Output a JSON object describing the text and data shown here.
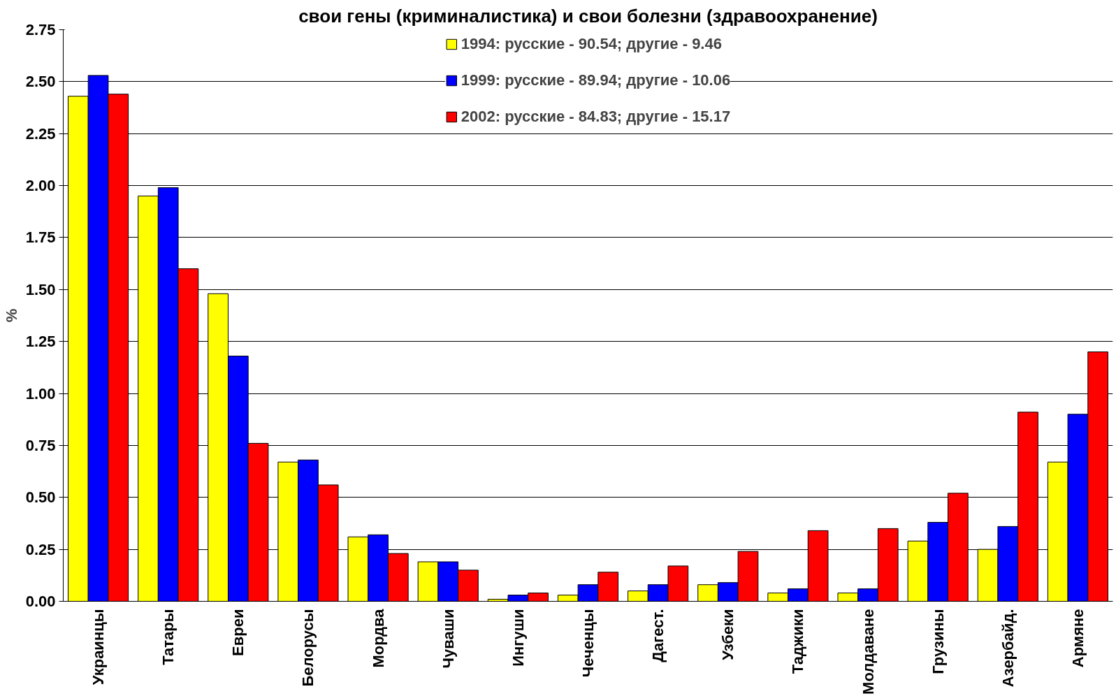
{
  "chart_data": {
    "type": "bar",
    "title": "свои гены (криминалистика) и свои болезни (здравоохранение)",
    "ylabel": "%",
    "categories": [
      "Украинцы",
      "Татары",
      "Евреи",
      "Белорусы",
      "Мордва",
      "Чуваши",
      "Ингуши",
      "Чеченцы",
      "Дагест.",
      "Узбеки",
      "Таджики",
      "Молдаване",
      "Грузины",
      "Азербайд.",
      "Армяне"
    ],
    "series": [
      {
        "name": "1994: русские - 90.54; другие - 9.46",
        "color": "#ffff00",
        "values": [
          2.43,
          1.95,
          1.48,
          0.67,
          0.31,
          0.19,
          0.01,
          0.03,
          0.05,
          0.08,
          0.04,
          0.04,
          0.29,
          0.25,
          0.67
        ]
      },
      {
        "name": "1999: русские - 89.94; другие - 10.06",
        "color": "#0000ff",
        "values": [
          2.53,
          1.99,
          1.18,
          0.68,
          0.32,
          0.19,
          0.03,
          0.08,
          0.08,
          0.09,
          0.06,
          0.06,
          0.38,
          0.36,
          0.9
        ]
      },
      {
        "name": "2002: русские - 84.83; другие - 15.17",
        "color": "#ff0000",
        "values": [
          2.44,
          1.6,
          0.76,
          0.56,
          0.23,
          0.15,
          0.04,
          0.14,
          0.17,
          0.24,
          0.34,
          0.35,
          0.52,
          0.91,
          1.2
        ]
      }
    ],
    "ylim": [
      0,
      2.75
    ],
    "yticks": [
      {
        "value": 0,
        "label": "0.00"
      },
      {
        "value": 0.25,
        "label": "0.25"
      },
      {
        "value": 0.5,
        "label": "0.50"
      },
      {
        "value": 0.75,
        "label": "0.75"
      },
      {
        "value": 1,
        "label": "1.00"
      },
      {
        "value": 1.25,
        "label": "1.25"
      },
      {
        "value": 1.5,
        "label": "1.50"
      },
      {
        "value": 1.75,
        "label": "1.75"
      },
      {
        "value": 2,
        "label": "2.00"
      },
      {
        "value": 2.25,
        "label": "2.25"
      },
      {
        "value": 2.5,
        "label": "2.50"
      },
      {
        "value": 2.75,
        "label": "2.75"
      }
    ],
    "grid": "y",
    "legend": "top"
  }
}
